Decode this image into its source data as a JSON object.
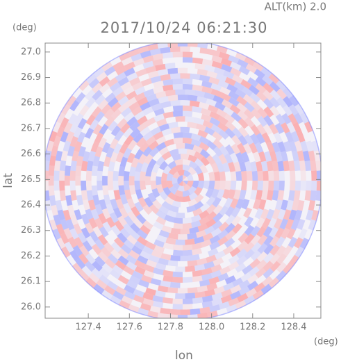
{
  "chart_data": {
    "type": "radar-ppi",
    "title": "2017/10/24 06:21:30",
    "subtitle": "ALT(km) 2.0",
    "x_label": "lon",
    "y_label": "lat",
    "x_unit": "(deg)",
    "y_unit": "(deg)",
    "xlim": [
      127.19,
      128.532
    ],
    "ylim": [
      25.956,
      27.035
    ],
    "xticks": [
      127.4,
      127.6,
      127.8,
      {
        "value": 128,
        "label": "128.0"
      },
      128.2,
      128.4
    ],
    "yticks": [
      {
        "value": 26,
        "label": "26.0"
      },
      26.1,
      26.2,
      26.3,
      26.4,
      26.5,
      26.6,
      26.7,
      26.8,
      26.9,
      {
        "value": 27,
        "label": "27.0"
      }
    ]
  }
}
